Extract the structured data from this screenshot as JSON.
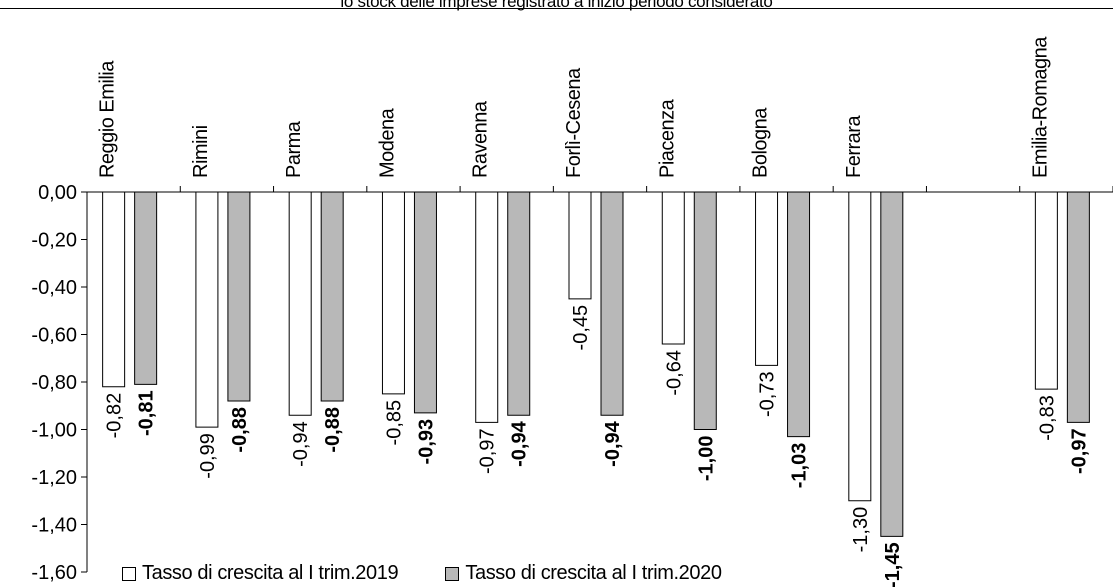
{
  "subtitle": "lo stock delle imprese registrato a inizio periodo considerato",
  "legend": {
    "s1": "Tasso di crescita al I trim.2019",
    "s2": "Tasso di crescita al I trim.2020"
  },
  "colors": {
    "s1": "#ffffff",
    "s2": "#b8b8b8",
    "stroke": "#000000"
  },
  "chart_data": {
    "type": "bar",
    "title": "",
    "xlabel": "",
    "ylabel": "",
    "ylim": [
      -1.6,
      0
    ],
    "yticks": [
      "0,00",
      "-0,20",
      "-0,40",
      "-0,60",
      "-0,80",
      "-1,00",
      "-1,20",
      "-1,40",
      "-1,60"
    ],
    "grid": false,
    "legend_position": "bottom",
    "categories": [
      "Reggio Emilia",
      "Rimini",
      "Parma",
      "Modena",
      "Ravenna",
      "Forlì-Cesena",
      "Piacenza",
      "Bologna",
      "Ferrara",
      "",
      "Emilia-Romagna"
    ],
    "series": [
      {
        "name": "Tasso di crescita al I trim.2019",
        "values": [
          -0.82,
          -0.99,
          -0.94,
          -0.85,
          -0.97,
          -0.45,
          -0.64,
          -0.73,
          -1.3,
          null,
          -0.83
        ],
        "labels": [
          "-0,82",
          "-0,99",
          "-0,94",
          "-0,85",
          "-0,97",
          "-0,45",
          "-0,64",
          "-0,73",
          "-1,30",
          "",
          "-0,83"
        ]
      },
      {
        "name": "Tasso di crescita al I trim.2020",
        "values": [
          -0.81,
          -0.88,
          -0.88,
          -0.93,
          -0.94,
          -0.94,
          -1.0,
          -1.03,
          -1.45,
          null,
          -0.97
        ],
        "labels": [
          "-0,81",
          "-0,88",
          "-0,88",
          "-0,93",
          "-0,94",
          "-0,94",
          "-1,00",
          "-1,03",
          "-1,45",
          "",
          "-0,97"
        ]
      }
    ]
  }
}
